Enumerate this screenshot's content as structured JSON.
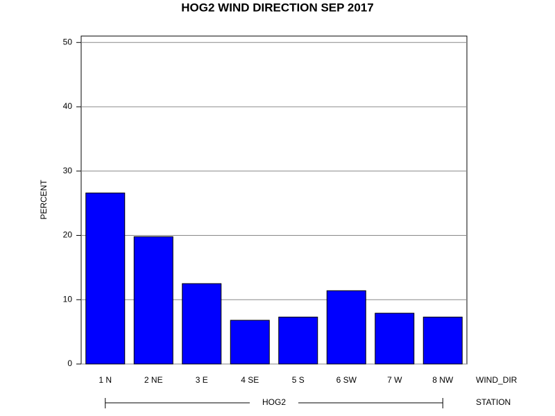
{
  "chart_data": {
    "type": "bar",
    "title": "HOG2 WIND DIRECTION SEP 2017",
    "y_label": "PERCENT",
    "x_label": "WIND_DIR",
    "group_label": "STATION",
    "group_name": "HOG2",
    "categories": [
      "1 N",
      "2 NE",
      "3 E",
      "4 SE",
      "5 S",
      "6 SW",
      "7 W",
      "8 NW"
    ],
    "values": [
      26.6,
      19.8,
      12.5,
      6.8,
      7.3,
      11.4,
      7.9,
      7.3
    ],
    "color": "#0000ff",
    "edge_color": "#000000",
    "ylim": [
      0,
      51
    ],
    "yticks": [
      0,
      10,
      20,
      30,
      40,
      50
    ],
    "grid": true
  }
}
